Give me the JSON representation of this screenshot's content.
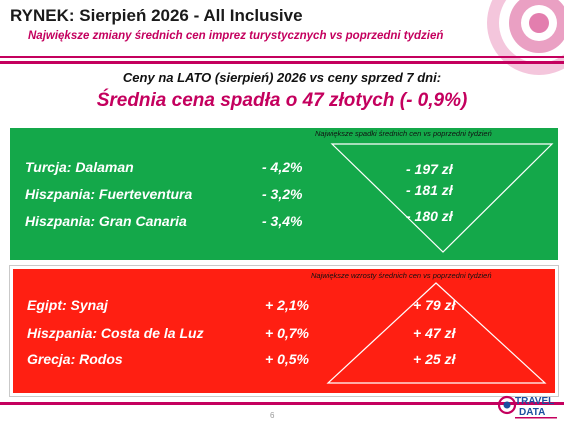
{
  "header": {
    "title": "RYNEK: Sierpień 2026 - All Inclusive",
    "subtitle": "Największe zmiany średnich cen imprez turystycznych vs poprzedni tydzień"
  },
  "summary": {
    "intro": "Ceny na LATO (sierpień) 2026 vs ceny sprzed 7 dni:",
    "headline": "Średnia cena spadła o 47 złotych (- 0,9%)"
  },
  "decreases": {
    "note": "Największe spadki średnich cen vs poprzedni tydzień",
    "rows": [
      {
        "destination": "Turcja: Dalaman",
        "percent": "- 4,2%",
        "amount": "- 197 zł"
      },
      {
        "destination": "Hiszpania: Fuerteventura",
        "percent": "- 3,2%",
        "amount": "- 181 zł"
      },
      {
        "destination": "Hiszpania: Gran Canaria",
        "percent": "- 3,4%",
        "amount": "- 180 zł"
      }
    ]
  },
  "increases": {
    "note": "Największe wzrosty średnich cen vs poprzedni tydzień",
    "rows": [
      {
        "destination": "Egipt: Synaj",
        "percent": "+ 2,1%",
        "amount": "+ 79 zł"
      },
      {
        "destination": "Hiszpania: Costa de la Luz",
        "percent": "+ 0,7%",
        "amount": "+ 47 zł"
      },
      {
        "destination": "Grecja: Rodos",
        "percent": "+ 0,5%",
        "amount": "+ 25 zł"
      }
    ]
  },
  "footer": {
    "page_number": "6",
    "logo_line1": "TRAVEL",
    "logo_line2": "DATA"
  },
  "colors": {
    "accent": "#c4005e",
    "decrease_panel": "#14a84a",
    "increase_panel": "#ff1f12"
  }
}
